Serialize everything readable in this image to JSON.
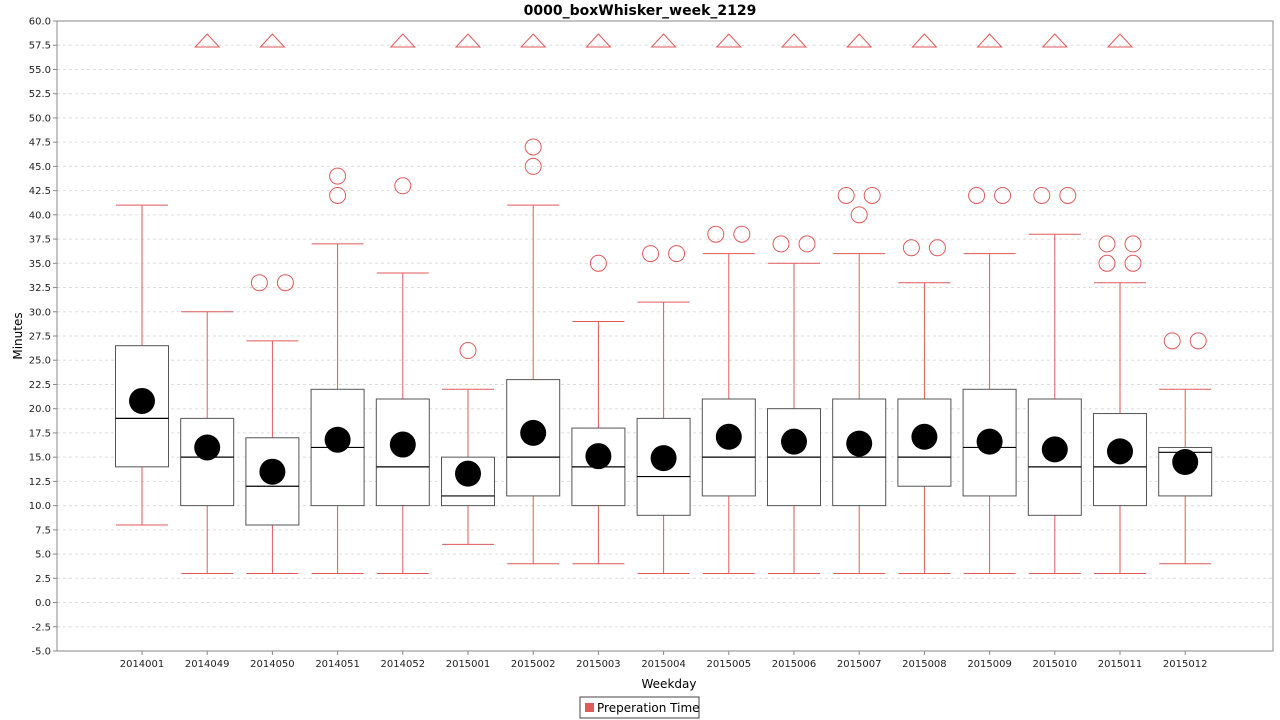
{
  "chart_data": {
    "type": "boxplot",
    "title": "0000_boxWhisker_week_2129",
    "xlabel": "Weekday",
    "ylabel": "Minutes",
    "ylim": [
      -5,
      60
    ],
    "ytick_step": 2.5,
    "grid": true,
    "legend": {
      "position": "bottom-center",
      "entries": [
        "Preperation Time"
      ]
    },
    "colors": {
      "series": "#e05a5a",
      "box": "#555555",
      "median": "#000000",
      "mean": "#000000",
      "grid": "#dddddd"
    },
    "categories": [
      "2014001",
      "2014049",
      "2014050",
      "2014051",
      "2014052",
      "2015001",
      "2015002",
      "2015003",
      "2015004",
      "2015005",
      "2015006",
      "2015007",
      "2015008",
      "2015009",
      "2015010",
      "2015011",
      "2015012"
    ],
    "series": [
      {
        "name": "Preperation Time",
        "boxes": [
          {
            "q1": 14,
            "median": 19,
            "q3": 26.5,
            "mean": 20.8,
            "whisker_low": 8,
            "whisker_high": 41,
            "outliers": [],
            "far_out": false
          },
          {
            "q1": 10,
            "median": 15,
            "q3": 19,
            "mean": 16,
            "whisker_low": 3,
            "whisker_high": 30,
            "outliers": [],
            "far_out": true
          },
          {
            "q1": 8,
            "median": 12,
            "q3": 17,
            "mean": 13.5,
            "whisker_low": 3,
            "whisker_high": 27,
            "outliers": [
              33,
              33
            ],
            "far_out": true
          },
          {
            "q1": 10,
            "median": 16,
            "q3": 22,
            "mean": 16.8,
            "whisker_low": 3,
            "whisker_high": 37,
            "outliers": [
              42,
              44
            ],
            "far_out": false
          },
          {
            "q1": 10,
            "median": 14,
            "q3": 21,
            "mean": 16.3,
            "whisker_low": 3,
            "whisker_high": 34,
            "outliers": [
              43
            ],
            "far_out": true
          },
          {
            "q1": 10,
            "median": 11,
            "q3": 15,
            "mean": 13.3,
            "whisker_low": 6,
            "whisker_high": 22,
            "outliers": [
              26
            ],
            "far_out": true
          },
          {
            "q1": 11,
            "median": 15,
            "q3": 23,
            "mean": 17.5,
            "whisker_low": 4,
            "whisker_high": 41,
            "outliers": [
              45,
              47
            ],
            "far_out": true
          },
          {
            "q1": 10,
            "median": 14,
            "q3": 18,
            "mean": 15.1,
            "whisker_low": 4,
            "whisker_high": 29,
            "outliers": [
              35
            ],
            "far_out": true
          },
          {
            "q1": 9,
            "median": 13,
            "q3": 19,
            "mean": 14.9,
            "whisker_low": 3,
            "whisker_high": 31,
            "outliers": [
              36,
              36
            ],
            "far_out": true
          },
          {
            "q1": 11,
            "median": 15,
            "q3": 21,
            "mean": 17.1,
            "whisker_low": 3,
            "whisker_high": 36,
            "outliers": [
              38,
              38
            ],
            "far_out": true
          },
          {
            "q1": 10,
            "median": 15,
            "q3": 20,
            "mean": 16.6,
            "whisker_low": 3,
            "whisker_high": 35,
            "outliers": [
              37,
              37
            ],
            "far_out": true
          },
          {
            "q1": 10,
            "median": 15,
            "q3": 21,
            "mean": 16.4,
            "whisker_low": 3,
            "whisker_high": 36,
            "outliers": [
              40,
              42,
              42
            ],
            "far_out": true
          },
          {
            "q1": 12,
            "median": 15,
            "q3": 21,
            "mean": 17.1,
            "whisker_low": 3,
            "whisker_high": 33,
            "outliers": [
              36.6,
              36.6
            ],
            "far_out": true
          },
          {
            "q1": 11,
            "median": 16,
            "q3": 22,
            "mean": 16.6,
            "whisker_low": 3,
            "whisker_high": 36,
            "outliers": [
              42,
              42
            ],
            "far_out": true
          },
          {
            "q1": 9,
            "median": 14,
            "q3": 21,
            "mean": 15.8,
            "whisker_low": 3,
            "whisker_high": 38,
            "outliers": [
              42,
              42
            ],
            "far_out": true
          },
          {
            "q1": 10,
            "median": 14,
            "q3": 19.5,
            "mean": 15.6,
            "whisker_low": 3,
            "whisker_high": 33,
            "outliers": [
              35,
              35,
              37,
              37
            ],
            "far_out": true
          },
          {
            "q1": 11,
            "median": 15.5,
            "q3": 16,
            "mean": 14.5,
            "whisker_low": 4,
            "whisker_high": 22,
            "outliers": [
              27,
              27
            ],
            "far_out": false
          }
        ]
      }
    ]
  }
}
